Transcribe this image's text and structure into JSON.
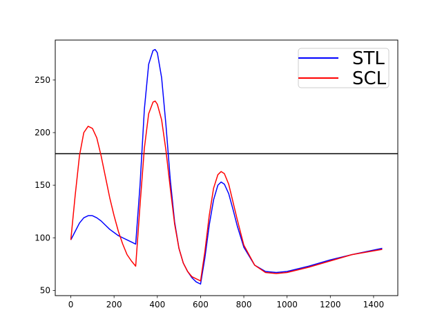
{
  "chart_data": {
    "type": "line",
    "x": [
      0,
      20,
      40,
      60,
      80,
      100,
      120,
      140,
      160,
      180,
      200,
      220,
      240,
      260,
      280,
      300,
      320,
      340,
      360,
      380,
      390,
      400,
      420,
      440,
      460,
      480,
      500,
      520,
      540,
      560,
      580,
      600,
      620,
      640,
      660,
      680,
      695,
      710,
      730,
      750,
      770,
      800,
      850,
      900,
      950,
      1000,
      1100,
      1200,
      1300,
      1440
    ],
    "series": [
      {
        "name": "STL",
        "color": "#0000ff",
        "values": [
          98,
          106,
          114,
          119,
          121,
          121,
          119,
          116,
          112,
          108,
          105,
          102,
          100,
          98,
          96,
          94,
          150,
          222,
          265,
          278,
          279,
          276,
          252,
          207,
          155,
          115,
          90,
          76,
          68,
          62,
          58,
          56,
          81,
          112,
          136,
          150,
          153,
          151,
          142,
          127,
          111,
          91,
          74,
          68,
          67,
          68,
          73,
          79,
          84,
          90
        ]
      },
      {
        "name": "SCL",
        "color": "#ff0000",
        "values": [
          98,
          140,
          178,
          200,
          206,
          204,
          195,
          178,
          158,
          138,
          121,
          106,
          94,
          84,
          78,
          73,
          131,
          185,
          218,
          229,
          230,
          227,
          212,
          183,
          147,
          113,
          90,
          76,
          68,
          63,
          61,
          59,
          87,
          121,
          147,
          160,
          163,
          161,
          151,
          134,
          117,
          93,
          74,
          67,
          66,
          67,
          72,
          78,
          84,
          89
        ]
      }
    ],
    "hline": {
      "y": 180,
      "color": "#000000"
    },
    "xlim": [
      -72,
      1512
    ],
    "ylim": [
      45,
      288
    ],
    "xticks": [
      0,
      200,
      400,
      600,
      800,
      1000,
      1200,
      1400
    ],
    "yticks": [
      50,
      100,
      150,
      200,
      250
    ],
    "title": "",
    "xlabel": "",
    "ylabel": "",
    "grid": false,
    "legend": "top-right"
  }
}
